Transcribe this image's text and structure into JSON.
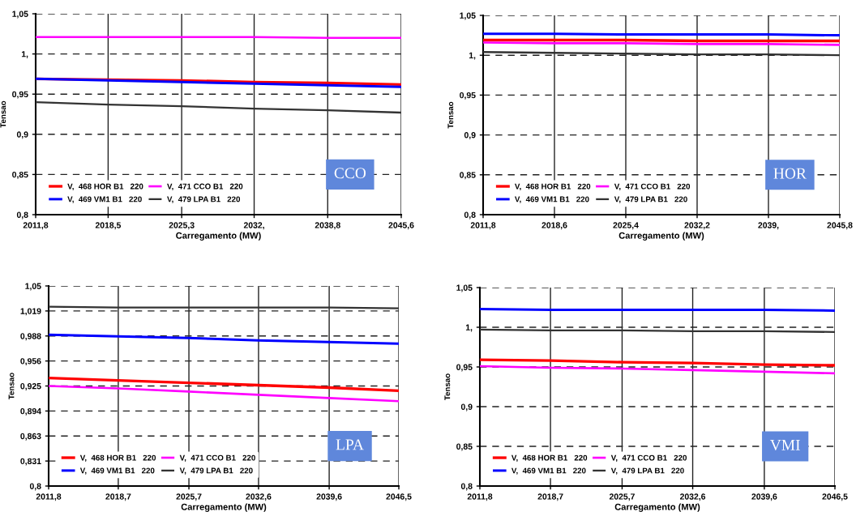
{
  "chart_data": [
    {
      "type": "line",
      "xlabel": "Carregamento (MW)",
      "ylabel": "Tensao",
      "annotations": [
        "CCO"
      ],
      "grid": true,
      "legend": "bottom left",
      "marker": "none",
      "line_style": "solid",
      "x": [
        2011.8,
        2018.5,
        2025.3,
        2032.0,
        2038.8,
        2045.6
      ],
      "xlim": [
        2011.8,
        2045.6
      ],
      "xticks": [
        {
          "value": 2011.8,
          "label": "2011,8"
        },
        {
          "value": 2018.5,
          "label": "2018,5"
        },
        {
          "value": 2025.3,
          "label": "2025,3"
        },
        {
          "value": 2032.0,
          "label": "2032,"
        },
        {
          "value": 2038.8,
          "label": "2038,8"
        },
        {
          "value": 2045.6,
          "label": "2045,6"
        }
      ],
      "ylim": [
        0.8,
        1.05
      ],
      "yticks": [
        {
          "value": 0.8,
          "label": "0,8"
        },
        {
          "value": 0.85,
          "label": "0,85"
        },
        {
          "value": 0.9,
          "label": "0,9"
        },
        {
          "value": 0.95,
          "label": "0,95"
        },
        {
          "value": 1.0,
          "label": "1,"
        },
        {
          "value": 1.05,
          "label": "1,05"
        }
      ],
      "series": [
        {
          "name": "V,  468 HOR B1   220",
          "color": "#ff0000",
          "values": [
            0.969,
            0.968,
            0.967,
            0.965,
            0.964,
            0.962
          ]
        },
        {
          "name": "V,  469 VM1 B1   220",
          "color": "#0000ff",
          "values": [
            0.969,
            0.967,
            0.965,
            0.963,
            0.961,
            0.959
          ]
        },
        {
          "name": "V,  471 CCO B1   220",
          "color": "#ff00ff",
          "values": [
            1.021,
            1.021,
            1.021,
            1.021,
            1.02,
            1.02
          ]
        },
        {
          "name": "V,  479 LPA B1   220",
          "color": "#333333",
          "values": [
            0.94,
            0.937,
            0.935,
            0.932,
            0.93,
            0.927
          ]
        }
      ]
    },
    {
      "type": "line",
      "xlabel": "Carregamento (MW)",
      "ylabel": "Tensao",
      "annotations": [
        "HOR"
      ],
      "grid": true,
      "legend": "bottom left",
      "marker": "none",
      "line_style": "solid",
      "x": [
        2011.8,
        2018.6,
        2025.4,
        2032.2,
        2039.0,
        2045.8
      ],
      "xlim": [
        2011.8,
        2045.8
      ],
      "xticks": [
        {
          "value": 2011.8,
          "label": "2011,8"
        },
        {
          "value": 2018.6,
          "label": "2018,6"
        },
        {
          "value": 2025.4,
          "label": "2025,4"
        },
        {
          "value": 2032.2,
          "label": "2032,2"
        },
        {
          "value": 2039.0,
          "label": "2039,"
        },
        {
          "value": 2045.8,
          "label": "2045,8"
        }
      ],
      "ylim": [
        0.8,
        1.05
      ],
      "yticks": [
        {
          "value": 0.8,
          "label": "0,8"
        },
        {
          "value": 0.85,
          "label": "0,85"
        },
        {
          "value": 0.9,
          "label": "0,9"
        },
        {
          "value": 0.95,
          "label": "0,95"
        },
        {
          "value": 1.0,
          "label": "1,"
        },
        {
          "value": 1.05,
          "label": "1,05"
        }
      ],
      "series": [
        {
          "name": "V,  468 HOR B1   220",
          "color": "#ff0000",
          "values": [
            1.019,
            1.019,
            1.019,
            1.018,
            1.018,
            1.018
          ]
        },
        {
          "name": "V,  469 VM1 B1   220",
          "color": "#0000ff",
          "values": [
            1.027,
            1.027,
            1.026,
            1.026,
            1.026,
            1.025
          ]
        },
        {
          "name": "V,  471 CCO B1   220",
          "color": "#ff00ff",
          "values": [
            1.016,
            1.015,
            1.015,
            1.014,
            1.014,
            1.013
          ]
        },
        {
          "name": "V,  479 LPA B1   220",
          "color": "#333333",
          "values": [
            1.004,
            1.003,
            1.002,
            1.001,
            1.001,
            1.0
          ]
        }
      ]
    },
    {
      "type": "line",
      "xlabel": "Carregamento (MW)",
      "ylabel": "Tensao",
      "annotations": [
        "LPA"
      ],
      "grid": true,
      "legend": "bottom left",
      "marker": "none",
      "line_style": "solid",
      "x": [
        2011.8,
        2018.7,
        2025.7,
        2032.6,
        2039.6,
        2046.5
      ],
      "xlim": [
        2011.8,
        2046.5
      ],
      "xticks": [
        {
          "value": 2011.8,
          "label": "2011,8"
        },
        {
          "value": 2018.7,
          "label": "2018,7"
        },
        {
          "value": 2025.7,
          "label": "2025,7"
        },
        {
          "value": 2032.6,
          "label": "2032,6"
        },
        {
          "value": 2039.6,
          "label": "2039,6"
        },
        {
          "value": 2046.5,
          "label": "2046,5"
        }
      ],
      "ylim": [
        0.8,
        1.05
      ],
      "yticks": [
        {
          "value": 0.8,
          "label": "0,8"
        },
        {
          "value": 0.83125,
          "label": "0,831"
        },
        {
          "value": 0.8625,
          "label": "0,863"
        },
        {
          "value": 0.89375,
          "label": "0,894"
        },
        {
          "value": 0.925,
          "label": "0,925"
        },
        {
          "value": 0.95625,
          "label": "0,956"
        },
        {
          "value": 0.9875,
          "label": "0,988"
        },
        {
          "value": 1.01875,
          "label": "1,019"
        },
        {
          "value": 1.05,
          "label": "1,05"
        }
      ],
      "series": [
        {
          "name": "V,  468 HOR B1   220",
          "color": "#ff0000",
          "values": [
            0.935,
            0.932,
            0.929,
            0.926,
            0.923,
            0.919
          ]
        },
        {
          "name": "V,  469 VM1 B1   220",
          "color": "#0000ff",
          "values": [
            0.989,
            0.987,
            0.985,
            0.982,
            0.98,
            0.978
          ]
        },
        {
          "name": "V,  471 CCO B1   220",
          "color": "#ff00ff",
          "values": [
            0.925,
            0.922,
            0.918,
            0.914,
            0.91,
            0.906
          ]
        },
        {
          "name": "V,  479 LPA B1   220",
          "color": "#333333",
          "values": [
            1.024,
            1.023,
            1.023,
            1.023,
            1.023,
            1.022
          ]
        }
      ]
    },
    {
      "type": "line",
      "xlabel": "Carregamento (MW)",
      "ylabel": "Tensao",
      "annotations": [
        "VMI"
      ],
      "grid": true,
      "legend": "bottom left",
      "marker": "none",
      "line_style": "solid",
      "x": [
        2011.8,
        2018.7,
        2025.7,
        2032.6,
        2039.6,
        2046.5
      ],
      "xlim": [
        2011.8,
        2046.5
      ],
      "xticks": [
        {
          "value": 2011.8,
          "label": "2011,8"
        },
        {
          "value": 2018.7,
          "label": "2018,7"
        },
        {
          "value": 2025.7,
          "label": "2025,7"
        },
        {
          "value": 2032.6,
          "label": "2032,6"
        },
        {
          "value": 2039.6,
          "label": "2039,6"
        },
        {
          "value": 2046.5,
          "label": "2046,5"
        }
      ],
      "ylim": [
        0.8,
        1.05
      ],
      "yticks": [
        {
          "value": 0.8,
          "label": "0,8"
        },
        {
          "value": 0.85,
          "label": "0,85"
        },
        {
          "value": 0.9,
          "label": "0,9"
        },
        {
          "value": 0.95,
          "label": "0,95"
        },
        {
          "value": 1.0,
          "label": "1,"
        },
        {
          "value": 1.05,
          "label": "1,05"
        }
      ],
      "series": [
        {
          "name": "V,  468 HOR B1   220",
          "color": "#ff0000",
          "values": [
            0.959,
            0.958,
            0.956,
            0.955,
            0.953,
            0.952
          ]
        },
        {
          "name": "V,  469 VM1 B1   220",
          "color": "#0000ff",
          "values": [
            1.023,
            1.022,
            1.022,
            1.022,
            1.022,
            1.021
          ]
        },
        {
          "name": "V,  471 CCO B1   220",
          "color": "#ff00ff",
          "values": [
            0.951,
            0.949,
            0.948,
            0.946,
            0.944,
            0.942
          ]
        },
        {
          "name": "V,  479 LPA B1   220",
          "color": "#333333",
          "values": [
            0.997,
            0.996,
            0.996,
            0.995,
            0.995,
            0.994
          ]
        }
      ]
    }
  ]
}
